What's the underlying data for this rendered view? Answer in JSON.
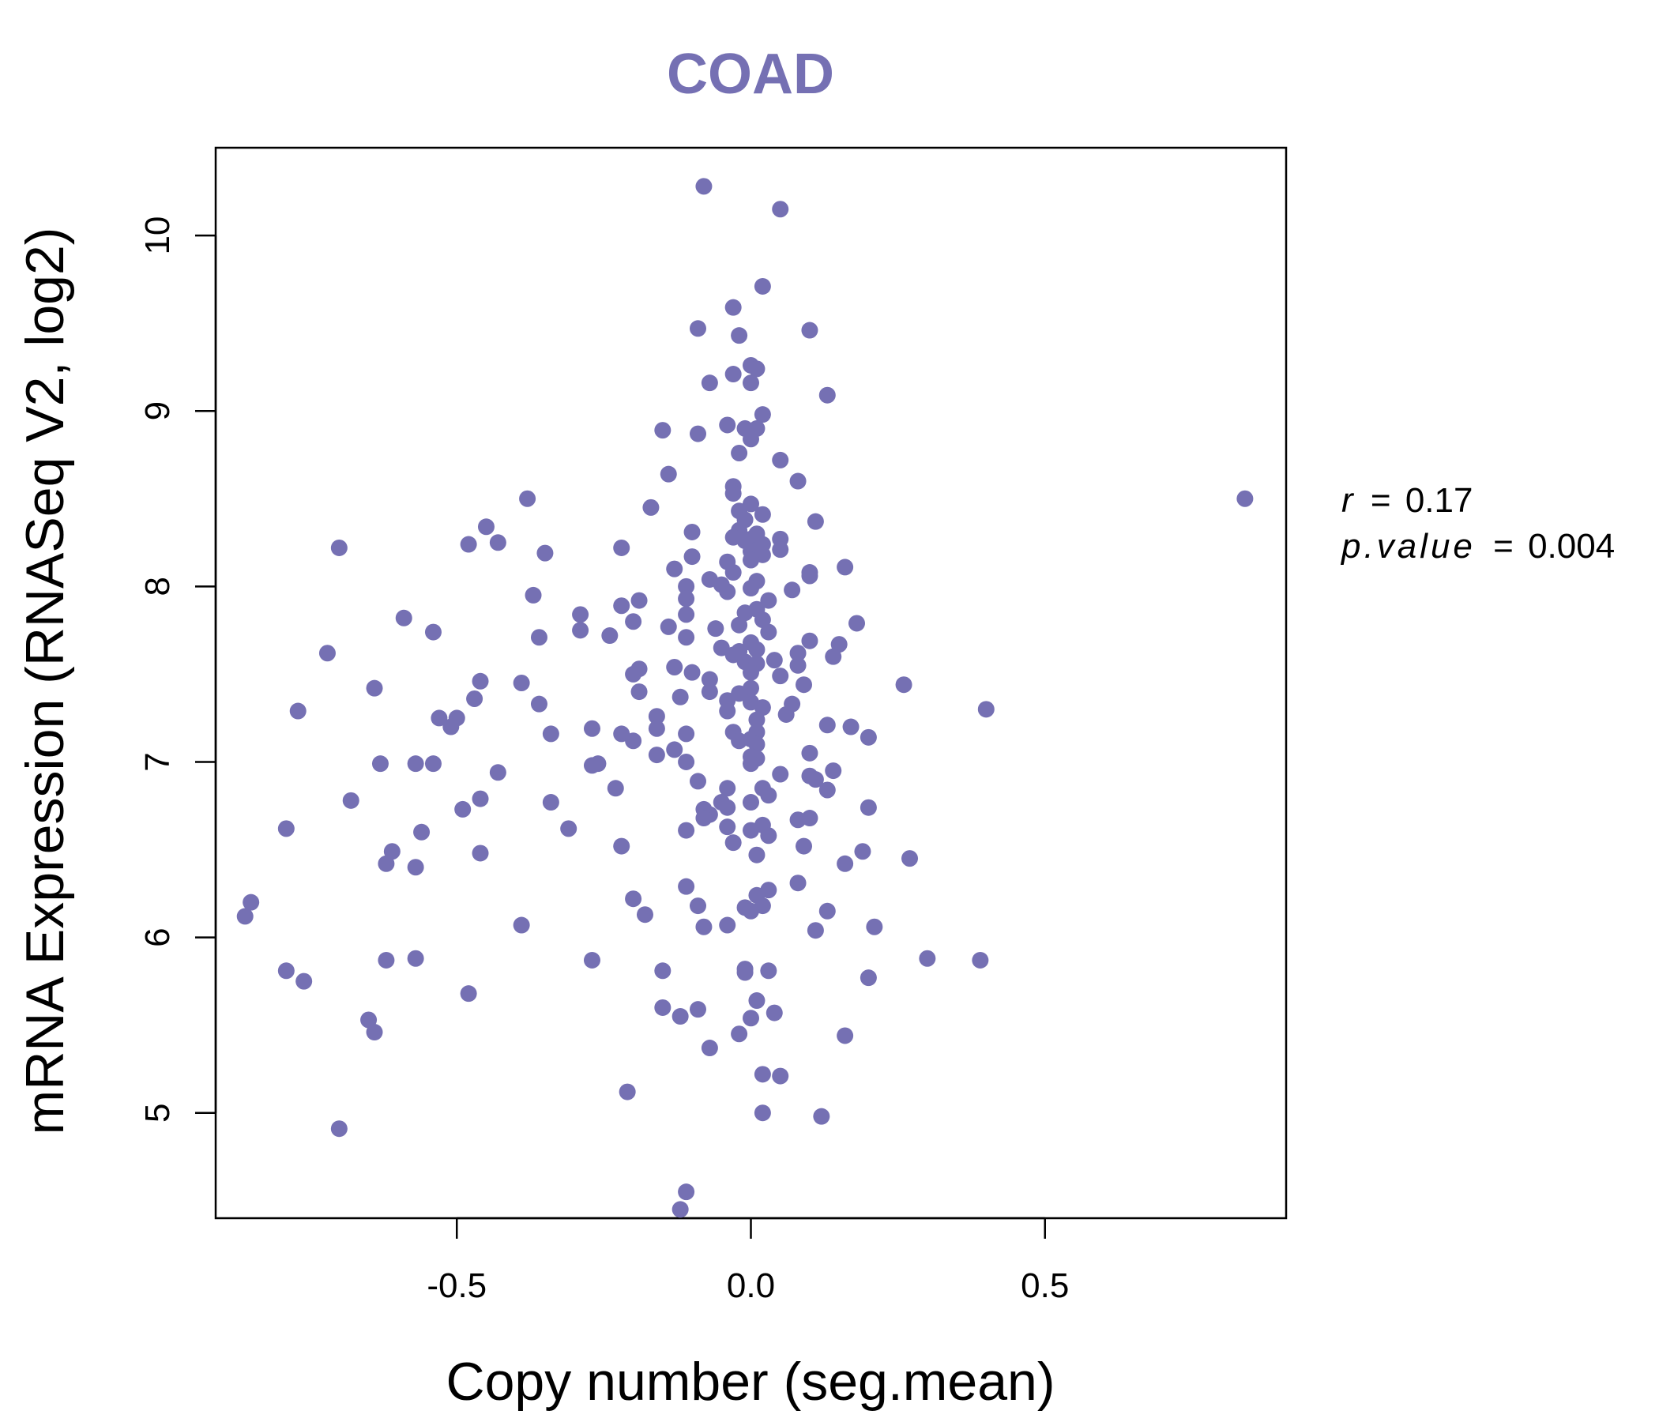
{
  "chart_data": {
    "type": "scatter",
    "title": "COAD",
    "xlabel": "Copy number (seg.mean)",
    "ylabel": "mRNA Expression (RNASeq V2, log2)",
    "xlim": [
      -0.91,
      0.91
    ],
    "ylim": [
      4.4,
      10.5
    ],
    "xticks": [
      -0.5,
      0.0,
      0.5
    ],
    "xtick_labels": [
      "-0.5",
      "0.0",
      "0.5"
    ],
    "yticks": [
      5,
      6,
      7,
      8,
      9,
      10
    ],
    "ytick_labels": [
      "5",
      "6",
      "7",
      "8",
      "9",
      "10"
    ],
    "color": "#7570b3",
    "annotations": {
      "r_label": "r",
      "r_value": "0.17",
      "p_label": "p.value",
      "p_value": "0.004",
      "equals": "="
    },
    "series": [
      {
        "name": "samples",
        "points": [
          [
            -0.08,
            10.28
          ],
          [
            0.05,
            10.15
          ],
          [
            0.02,
            9.71
          ],
          [
            -0.03,
            9.59
          ],
          [
            -0.09,
            9.47
          ],
          [
            -0.02,
            9.43
          ],
          [
            0.1,
            9.46
          ],
          [
            0.0,
            9.26
          ],
          [
            0.01,
            9.24
          ],
          [
            -0.03,
            9.21
          ],
          [
            -0.07,
            9.16
          ],
          [
            0.0,
            9.16
          ],
          [
            0.13,
            9.09
          ],
          [
            0.02,
            8.98
          ],
          [
            -0.04,
            8.92
          ],
          [
            0.01,
            8.9
          ],
          [
            -0.01,
            8.9
          ],
          [
            -0.15,
            8.89
          ],
          [
            -0.09,
            8.87
          ],
          [
            0.0,
            8.84
          ],
          [
            -0.02,
            8.76
          ],
          [
            0.05,
            8.72
          ],
          [
            -0.14,
            8.64
          ],
          [
            0.08,
            8.6
          ],
          [
            -0.03,
            8.57
          ],
          [
            -0.03,
            8.53
          ],
          [
            -0.38,
            8.5
          ],
          [
            0.84,
            8.5
          ],
          [
            0.0,
            8.47
          ],
          [
            -0.17,
            8.45
          ],
          [
            -0.02,
            8.43
          ],
          [
            0.02,
            8.41
          ],
          [
            -0.01,
            8.38
          ],
          [
            0.11,
            8.37
          ],
          [
            -0.45,
            8.34
          ],
          [
            -0.02,
            8.32
          ],
          [
            -0.1,
            8.31
          ],
          [
            0.01,
            8.3
          ],
          [
            -0.03,
            8.28
          ],
          [
            0.0,
            8.27
          ],
          [
            -0.01,
            8.26
          ],
          [
            0.05,
            8.27
          ],
          [
            0.02,
            8.24
          ],
          [
            -0.43,
            8.25
          ],
          [
            -0.48,
            8.24
          ],
          [
            -0.7,
            8.22
          ],
          [
            -0.22,
            8.22
          ],
          [
            0.05,
            8.21
          ],
          [
            0.0,
            8.2
          ],
          [
            0.02,
            8.18
          ],
          [
            -0.1,
            8.17
          ],
          [
            0.0,
            8.15
          ],
          [
            0.16,
            8.11
          ],
          [
            -0.35,
            8.19
          ],
          [
            -0.04,
            8.14
          ],
          [
            -0.13,
            8.1
          ],
          [
            0.1,
            8.08
          ],
          [
            -0.03,
            8.08
          ],
          [
            0.1,
            8.06
          ],
          [
            -0.07,
            8.04
          ],
          [
            0.01,
            8.03
          ],
          [
            -0.05,
            8.01
          ],
          [
            -0.11,
            8.0
          ],
          [
            0.0,
            7.99
          ],
          [
            0.07,
            7.98
          ],
          [
            -0.04,
            7.97
          ],
          [
            -0.37,
            7.95
          ],
          [
            -0.11,
            7.93
          ],
          [
            0.03,
            7.92
          ],
          [
            -0.19,
            7.92
          ],
          [
            -0.22,
            7.89
          ],
          [
            0.01,
            7.87
          ],
          [
            -0.01,
            7.85
          ],
          [
            -0.29,
            7.84
          ],
          [
            -0.11,
            7.84
          ],
          [
            -0.59,
            7.82
          ],
          [
            0.02,
            7.81
          ],
          [
            0.18,
            7.79
          ],
          [
            -0.02,
            7.78
          ],
          [
            -0.2,
            7.8
          ],
          [
            -0.14,
            7.77
          ],
          [
            -0.06,
            7.76
          ],
          [
            -0.29,
            7.75
          ],
          [
            0.03,
            7.74
          ],
          [
            -0.54,
            7.74
          ],
          [
            -0.24,
            7.72
          ],
          [
            -0.36,
            7.71
          ],
          [
            -0.11,
            7.71
          ],
          [
            0.1,
            7.69
          ],
          [
            0.0,
            7.68
          ],
          [
            0.15,
            7.67
          ],
          [
            -0.05,
            7.65
          ],
          [
            0.01,
            7.64
          ],
          [
            -0.02,
            7.63
          ],
          [
            0.08,
            7.62
          ],
          [
            -0.72,
            7.62
          ],
          [
            -0.03,
            7.61
          ],
          [
            0.14,
            7.6
          ],
          [
            0.04,
            7.58
          ],
          [
            -0.01,
            7.57
          ],
          [
            0.01,
            7.56
          ],
          [
            0.08,
            7.55
          ],
          [
            -0.13,
            7.54
          ],
          [
            -0.19,
            7.53
          ],
          [
            -0.1,
            7.51
          ],
          [
            0.0,
            7.51
          ],
          [
            -0.2,
            7.5
          ],
          [
            0.05,
            7.49
          ],
          [
            -0.07,
            7.47
          ],
          [
            -0.46,
            7.46
          ],
          [
            -0.39,
            7.45
          ],
          [
            0.26,
            7.44
          ],
          [
            0.09,
            7.44
          ],
          [
            0.0,
            7.42
          ],
          [
            -0.64,
            7.42
          ],
          [
            -0.19,
            7.4
          ],
          [
            -0.02,
            7.39
          ],
          [
            -0.07,
            7.4
          ],
          [
            -0.12,
            7.37
          ],
          [
            -0.47,
            7.36
          ],
          [
            -0.04,
            7.35
          ],
          [
            0.0,
            7.34
          ],
          [
            0.07,
            7.33
          ],
          [
            -0.36,
            7.33
          ],
          [
            0.02,
            7.31
          ],
          [
            0.4,
            7.3
          ],
          [
            -0.77,
            7.29
          ],
          [
            -0.04,
            7.29
          ],
          [
            0.06,
            7.27
          ],
          [
            -0.53,
            7.25
          ],
          [
            -0.16,
            7.26
          ],
          [
            -0.5,
            7.25
          ],
          [
            0.01,
            7.24
          ],
          [
            0.13,
            7.21
          ],
          [
            0.17,
            7.2
          ],
          [
            -0.16,
            7.19
          ],
          [
            -0.27,
            7.19
          ],
          [
            -0.51,
            7.2
          ],
          [
            -0.03,
            7.17
          ],
          [
            0.01,
            7.17
          ],
          [
            -0.34,
            7.16
          ],
          [
            -0.11,
            7.16
          ],
          [
            -0.22,
            7.16
          ],
          [
            0.2,
            7.14
          ],
          [
            0.0,
            7.13
          ],
          [
            -0.2,
            7.12
          ],
          [
            -0.02,
            7.12
          ],
          [
            0.01,
            7.1
          ],
          [
            -0.13,
            7.07
          ],
          [
            0.1,
            7.05
          ],
          [
            0.0,
            7.03
          ],
          [
            -0.16,
            7.04
          ],
          [
            0.01,
            7.02
          ],
          [
            -0.11,
            7.0
          ],
          [
            -0.26,
            6.99
          ],
          [
            -0.63,
            6.99
          ],
          [
            -0.57,
            6.99
          ],
          [
            -0.54,
            6.99
          ],
          [
            0.0,
            6.99
          ],
          [
            -0.27,
            6.98
          ],
          [
            -0.43,
            6.94
          ],
          [
            0.14,
            6.95
          ],
          [
            0.05,
            6.93
          ],
          [
            0.1,
            6.92
          ],
          [
            0.11,
            6.9
          ],
          [
            -0.09,
            6.89
          ],
          [
            -0.23,
            6.85
          ],
          [
            0.02,
            6.85
          ],
          [
            -0.04,
            6.85
          ],
          [
            0.13,
            6.84
          ],
          [
            0.03,
            6.81
          ],
          [
            -0.68,
            6.78
          ],
          [
            -0.46,
            6.79
          ],
          [
            -0.05,
            6.77
          ],
          [
            0.0,
            6.77
          ],
          [
            -0.34,
            6.77
          ],
          [
            -0.04,
            6.74
          ],
          [
            0.2,
            6.74
          ],
          [
            -0.08,
            6.73
          ],
          [
            -0.49,
            6.73
          ],
          [
            -0.07,
            6.7
          ],
          [
            0.1,
            6.68
          ],
          [
            -0.08,
            6.68
          ],
          [
            0.08,
            6.67
          ],
          [
            0.02,
            6.64
          ],
          [
            -0.04,
            6.63
          ],
          [
            -0.31,
            6.62
          ],
          [
            -0.79,
            6.62
          ],
          [
            0.0,
            6.61
          ],
          [
            -0.11,
            6.61
          ],
          [
            0.03,
            6.58
          ],
          [
            -0.56,
            6.6
          ],
          [
            -0.03,
            6.54
          ],
          [
            0.09,
            6.52
          ],
          [
            -0.22,
            6.52
          ],
          [
            -0.61,
            6.49
          ],
          [
            0.19,
            6.49
          ],
          [
            0.01,
            6.47
          ],
          [
            -0.46,
            6.48
          ],
          [
            0.27,
            6.45
          ],
          [
            -0.62,
            6.42
          ],
          [
            -0.57,
            6.4
          ],
          [
            0.16,
            6.42
          ],
          [
            0.08,
            6.31
          ],
          [
            -0.11,
            6.29
          ],
          [
            0.03,
            6.27
          ],
          [
            0.01,
            6.24
          ],
          [
            -0.2,
            6.22
          ],
          [
            -0.85,
            6.2
          ],
          [
            -0.09,
            6.18
          ],
          [
            0.02,
            6.18
          ],
          [
            -0.01,
            6.17
          ],
          [
            0.0,
            6.15
          ],
          [
            0.13,
            6.15
          ],
          [
            -0.18,
            6.13
          ],
          [
            -0.86,
            6.12
          ],
          [
            0.21,
            6.06
          ],
          [
            -0.39,
            6.07
          ],
          [
            -0.04,
            6.07
          ],
          [
            -0.08,
            6.06
          ],
          [
            0.11,
            6.04
          ],
          [
            0.3,
            5.88
          ],
          [
            0.39,
            5.87
          ],
          [
            -0.27,
            5.87
          ],
          [
            -0.57,
            5.88
          ],
          [
            -0.62,
            5.87
          ],
          [
            -0.01,
            5.82
          ],
          [
            0.03,
            5.81
          ],
          [
            -0.15,
            5.81
          ],
          [
            -0.79,
            5.81
          ],
          [
            -0.01,
            5.8
          ],
          [
            0.2,
            5.77
          ],
          [
            -0.76,
            5.75
          ],
          [
            -0.48,
            5.68
          ],
          [
            0.01,
            5.64
          ],
          [
            -0.15,
            5.6
          ],
          [
            -0.09,
            5.59
          ],
          [
            0.04,
            5.57
          ],
          [
            -0.12,
            5.55
          ],
          [
            0.0,
            5.54
          ],
          [
            -0.65,
            5.53
          ],
          [
            -0.02,
            5.45
          ],
          [
            0.16,
            5.44
          ],
          [
            -0.64,
            5.46
          ],
          [
            -0.07,
            5.37
          ],
          [
            0.02,
            5.22
          ],
          [
            0.05,
            5.21
          ],
          [
            -0.21,
            5.12
          ],
          [
            0.02,
            5.0
          ],
          [
            0.12,
            4.98
          ],
          [
            -0.7,
            4.91
          ],
          [
            -0.11,
            4.55
          ],
          [
            -0.12,
            4.45
          ]
        ]
      }
    ]
  }
}
